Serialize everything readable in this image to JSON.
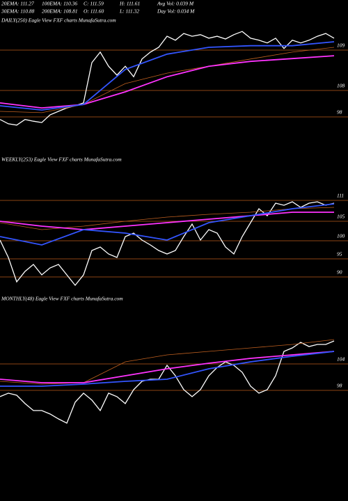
{
  "header": {
    "items": [
      "20EMA: 111.27",
      "100EMA: 110.36",
      "C: 111.59",
      "H: 111.61",
      "Avg Vol: 0.039 M",
      "30EMA: 110.88",
      "200EMA: 108.81",
      "O: 111.60",
      "L: 111.32",
      "Day Vol: 0.034  M"
    ]
  },
  "chart_data": [
    {
      "type": "line",
      "title": "DAILY(250) Eagle  View  FXF charts MunafaSutra.com",
      "ylim": [
        97,
        110
      ],
      "yticks": [
        109,
        108,
        98
      ],
      "series": [
        {
          "name": "Price",
          "color": "#ffffff",
          "values": [
            97.94,
            97.84,
            97.81,
            97.94,
            97.9,
            97.87,
            98.79,
            100.1,
            101.4,
            102.2,
            103.3,
            108.69,
            108.95,
            108.6,
            108.38,
            108.6,
            108.34,
            108.78,
            108.95,
            109.07,
            109.35,
            109.25,
            109.42,
            109.35,
            109.39,
            109.3,
            109.35,
            109.28,
            109.39,
            109.47,
            109.3,
            109.25,
            109.18,
            109.3,
            109.04,
            109.25,
            109.18,
            109.25,
            109.35,
            109.42,
            109.3
          ]
        },
        {
          "name": "EMA",
          "color": "#c06020",
          "values": [
            100.1,
            99.6,
            102.7,
            108.17,
            108.43,
            108.6,
            108.78,
            108.95,
            109.07
          ]
        },
        {
          "name": "200EMA",
          "color": "#ff33ff",
          "values": [
            103.3,
            101.4,
            102.7,
            107.47,
            108.34,
            108.6,
            108.72,
            108.79,
            108.86
          ]
        },
        {
          "name": "20EMA",
          "color": "#3355ff",
          "values": [
            102.2,
            100.6,
            102.7,
            108.52,
            108.9,
            109.07,
            109.11,
            109.11,
            109.21
          ]
        }
      ]
    },
    {
      "type": "line",
      "title": "WEEKLY(253) Eagle  View  FXF charts MunafaSutra.com",
      "ylim": [
        87,
        122
      ],
      "yticks": [
        111,
        105,
        100,
        95,
        90
      ],
      "series": [
        {
          "name": "Price",
          "color": "#ffffff",
          "values": [
            100.18,
            95.38,
            88.65,
            91.54,
            93.46,
            90.58,
            92.5,
            93.46,
            90.58,
            87.69,
            90.58,
            97.31,
            98.27,
            96.35,
            95.38,
            101.07,
            101.96,
            100.18,
            98.85,
            97.31,
            96.35,
            97.31,
            101.07,
            104.29,
            100.18,
            102.86,
            101.96,
            98.27,
            96.35,
            101.07,
            104.64,
            108.6,
            106.6,
            110.2,
            109.6,
            110.6,
            109.0,
            110.2,
            110.6,
            109.6,
            110.2
          ]
        },
        {
          "name": "EMA",
          "color": "#c06020",
          "values": [
            104.64,
            102.86,
            103.75,
            105,
            106.2,
            107,
            107.6,
            108.6,
            109.0
          ]
        },
        {
          "name": "200EMA",
          "color": "#ff33ff",
          "values": [
            105,
            103.75,
            102.86,
            103.75,
            104.64,
            105.6,
            106.6,
            107.6,
            107.6
          ]
        },
        {
          "name": "20EMA",
          "color": "#3355ff",
          "values": [
            101.07,
            98.85,
            102.86,
            101.96,
            100.18,
            104.64,
            106.6,
            108.6,
            110.0
          ]
        }
      ]
    },
    {
      "type": "line",
      "title": "MONTHLY(48) Eagle  View  FXF charts MunafaSutra.com",
      "ylim": [
        74,
        120
      ],
      "yticks": [
        104,
        98
      ],
      "series": [
        {
          "name": "Price",
          "color": "#ffffff",
          "values": [
            96.58,
            97.37,
            96.89,
            95.0,
            93.42,
            93.42,
            92.63,
            91.52,
            90.57,
            95.31,
            97.37,
            95.79,
            93.42,
            97.37,
            96.58,
            95.0,
            98.15,
            100.05,
            100.52,
            100.52,
            103.68,
            101.31,
            98.15,
            96.58,
            98.15,
            101.31,
            103.21,
            104.47,
            103.68,
            102.1,
            98.94,
            97.37,
            98.15,
            101.31,
            106.84,
            107.63,
            108.9,
            107.95,
            108.42,
            108.42,
            109.21
          ]
        },
        {
          "name": "EMA",
          "color": "#c06020",
          "values": [
            100.05,
            99.42,
            99.73,
            104.47,
            106.05,
            106.84,
            107.63,
            108.42,
            109.53
          ]
        },
        {
          "name": "200EMA",
          "color": "#ff33ff",
          "values": [
            100.52,
            99.73,
            99.73,
            101.31,
            102.89,
            104.16,
            105.26,
            106.05,
            106.84
          ]
        },
        {
          "name": "20EMA",
          "color": "#3355ff",
          "values": [
            98.94,
            98.94,
            99.42,
            100.05,
            100.52,
            102.89,
            104.47,
            105.74,
            106.84
          ]
        }
      ]
    }
  ]
}
